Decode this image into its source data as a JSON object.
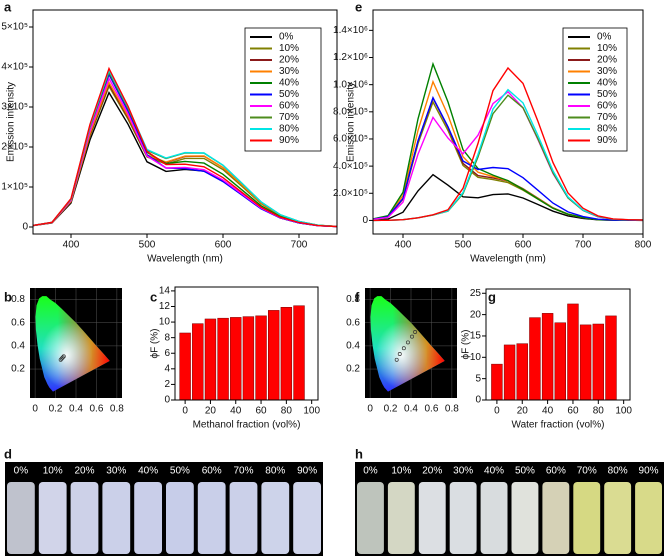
{
  "chart_data": [
    {
      "panel": "a",
      "type": "line",
      "xlabel": "Wavelength (nm)",
      "ylabel": "Emission intensity",
      "x": [
        350,
        375,
        400,
        425,
        450,
        475,
        500,
        525,
        550,
        575,
        600,
        625,
        650,
        675,
        700,
        725,
        750
      ],
      "xlim": [
        350,
        750
      ],
      "xticks": [
        400,
        500,
        600,
        700
      ],
      "ylim": [
        -17500,
        542500
      ],
      "yticks": [
        0,
        {
          "value": 100000,
          "label": "1×10⁵"
        },
        {
          "value": 200000,
          "label": "2×10⁵"
        },
        {
          "value": 300000,
          "label": "3×10⁵"
        },
        {
          "value": 400000,
          "label": "4×10⁵"
        },
        {
          "value": 500000,
          "label": "5×10⁵"
        }
      ],
      "legend": "upper right",
      "series": [
        {
          "name": "0%",
          "color": "#000000",
          "values": [
            3400,
            10000,
            60000,
            218000,
            336000,
            257000,
            163000,
            139000,
            144000,
            140000,
            116000,
            82000,
            47000,
            23000,
            10000,
            3300,
            1100
          ]
        },
        {
          "name": "10%",
          "color": "#808000",
          "values": [
            3500,
            10500,
            63000,
            227500,
            351400,
            269500,
            175000,
            157500,
            171500,
            171500,
            143500,
            101500,
            58500,
            28700,
            13000,
            4200,
            1400
          ]
        },
        {
          "name": "20%",
          "color": "#8b1a1a",
          "values": [
            3550,
            10650,
            63900,
            230750,
            356450,
            273500,
            178100,
            161300,
            176500,
            177000,
            148300,
            104900,
            60400,
            29700,
            13400,
            4350,
            1450
          ]
        },
        {
          "name": "30%",
          "color": "#ff8000",
          "values": [
            3600,
            10800,
            64800,
            234000,
            361450,
            277300,
            180200,
            162500,
            177300,
            177400,
            148500,
            105100,
            60500,
            29700,
            13400,
            4350,
            1450
          ]
        },
        {
          "name": "40%",
          "color": "#008000",
          "values": [
            3850,
            11550,
            69300,
            250250,
            386250,
            295000,
            186700,
            158800,
            164000,
            159700,
            131800,
            92800,
            53300,
            26400,
            11900,
            3750,
            1250
          ]
        },
        {
          "name": "50%",
          "color": "#0000ff",
          "values": [
            3800,
            11400,
            68400,
            247000,
            381050,
            290300,
            180600,
            147500,
            146300,
            139200,
            113500,
            79700,
            45600,
            22700,
            10300,
            3150,
            1050
          ]
        },
        {
          "name": "60%",
          "color": "#ff00ff",
          "values": [
            3700,
            11100,
            66600,
            240500,
            371100,
            283000,
            177400,
            147500,
            149000,
            143300,
            117500,
            82600,
            47400,
            23500,
            10700,
            3300,
            1100
          ]
        },
        {
          "name": "70%",
          "color": "#4d8c1e",
          "values": [
            3850,
            11550,
            69300,
            250250,
            386500,
            296300,
            191700,
            171300,
            185300,
            184700,
            154300,
            109100,
            62800,
            30900,
            13900,
            4500,
            1500
          ]
        },
        {
          "name": "80%",
          "color": "#00e5e5",
          "values": [
            3900,
            11700,
            70200,
            253500,
            391500,
            300000,
            193800,
            172500,
            186000,
            185100,
            154500,
            109200,
            62900,
            30900,
            14000,
            4500,
            1500
          ]
        },
        {
          "name": "90%",
          "color": "#ff0000",
          "values": [
            3950,
            11850,
            71100,
            256750,
            396150,
            302000,
            188900,
            156300,
            157000,
            150600,
            123300,
            86600,
            49600,
            24700,
            11200,
            3450,
            1150
          ]
        }
      ]
    },
    {
      "panel": "b",
      "type": "cie",
      "xlim": [
        -0.05,
        0.85
      ],
      "ylim": [
        -0.05,
        0.9
      ],
      "xticks": [
        0,
        0.2,
        0.4,
        0.6,
        0.8
      ],
      "yticks": [
        0.2,
        0.4,
        0.6,
        0.8
      ],
      "x": [
        0.25,
        0.26,
        0.27,
        0.28
      ],
      "y": [
        0.28,
        0.29,
        0.3,
        0.31
      ]
    },
    {
      "panel": "c",
      "type": "bar",
      "xlabel": "Methanol fraction (vol%)",
      "ylabel": "ϕF (%)",
      "color": "#ff0000",
      "x": [
        0,
        10,
        20,
        30,
        40,
        50,
        60,
        70,
        80,
        90
      ],
      "values": [
        8.6,
        9.8,
        10.4,
        10.5,
        10.6,
        10.7,
        10.8,
        11.5,
        11.9,
        12.1
      ],
      "xlim": [
        -8,
        105
      ],
      "xticks": [
        0,
        20,
        40,
        60,
        80,
        100
      ],
      "ylim": [
        0,
        14.5
      ],
      "yticks": [
        0,
        2,
        4,
        6,
        8,
        10,
        12,
        14
      ]
    },
    {
      "panel": "e",
      "type": "line",
      "xlabel": "Wavelength (nm)",
      "ylabel": "Emission intensity",
      "x": [
        350,
        375,
        400,
        425,
        450,
        475,
        500,
        525,
        550,
        575,
        600,
        625,
        650,
        675,
        700,
        725,
        750,
        775,
        800
      ],
      "xlim": [
        350,
        800
      ],
      "xticks": [
        400,
        500,
        600,
        700,
        800
      ],
      "ylim": [
        -100000,
        1550000
      ],
      "yticks": [
        0,
        {
          "value": 200000,
          "label": "2.0×10⁵"
        },
        {
          "value": 400000,
          "label": "4.0×10⁵"
        },
        {
          "value": 600000,
          "label": "6.0×10⁵"
        },
        {
          "value": 800000,
          "label": "8.0×10⁵"
        },
        {
          "value": 1000000,
          "label": "1.0×10⁶"
        },
        {
          "value": 1200000,
          "label": "1.2×10⁶"
        },
        {
          "value": 1400000,
          "label": "1.4×10⁶"
        }
      ],
      "legend": "upper right",
      "series": [
        {
          "name": "0%",
          "color": "#000000",
          "values": [
            3350,
            10050,
            60300,
            217750,
            336700,
            259500,
            173700,
            166300,
            190500,
            195200,
            165300,
            117300,
            67700,
            33100,
            14900,
            4950,
            1650,
            800,
            500
          ]
        },
        {
          "name": "10%",
          "color": "#808000",
          "values": [
            8700,
            26100,
            156600,
            565500,
            872000,
            662500,
            405400,
            317500,
            300500,
            278300,
            223500,
            156100,
            89100,
            44700,
            20400,
            6000,
            2000,
            1000,
            600
          ]
        },
        {
          "name": "20%",
          "color": "#8b1a1a",
          "values": [
            9000,
            27000,
            162000,
            585000,
            902100,
            685500,
            420000,
            330000,
            313500,
            291000,
            234000,
            163500,
            93300,
            46800,
            21300,
            6300,
            2100,
            1100,
            600
          ]
        },
        {
          "name": "30%",
          "color": "#ff8000",
          "values": [
            10200,
            30600,
            183600,
            663000,
            1022000,
            775000,
            468400,
            355000,
            323000,
            291800,
            231000,
            160600,
            91300,
            46200,
            21100,
            6000,
            2000,
            1000,
            600
          ]
        },
        {
          "name": "40%",
          "color": "#008000",
          "values": [
            11500,
            34500,
            207000,
            747500,
            1151900,
            872000,
            521000,
            382500,
            334000,
            293500,
            228500,
            158000,
            89500,
            45700,
            21000,
            5700,
            1900,
            950,
            570
          ]
        },
        {
          "name": "50%",
          "color": "#0000ff",
          "values": [
            9000,
            27000,
            162000,
            585000,
            903000,
            690000,
            438000,
            375000,
            390000,
            381000,
            315000,
            222000,
            127500,
            63000,
            28500,
            9000,
            3000,
            1500,
            900
          ]
        },
        {
          "name": "60%",
          "color": "#ff00ff",
          "values": [
            7500,
            22500,
            135000,
            487500,
            758800,
            606500,
            491000,
            627500,
            860500,
            947500,
            829500,
            594500,
            345700,
            165900,
            74200,
            26400,
            8800,
            4400,
            2600
          ]
        },
        {
          "name": "70%",
          "color": "#4d8c1e",
          "values": [
            300,
            900,
            5400,
            19500,
            39200,
            68500,
            196600,
            467500,
            786500,
            922700,
            829500,
            598900,
            350100,
            165900,
            73800,
            27600,
            9200,
            4600,
            2800
          ]
        },
        {
          "name": "80%",
          "color": "#00e5e5",
          "values": [
            300,
            900,
            5400,
            19500,
            39600,
            70500,
            204600,
            487500,
            820500,
            962700,
            865500,
            624900,
            365300,
            173100,
            77000,
            28800,
            9600,
            4800,
            2900
          ]
        },
        {
          "name": "90%",
          "color": "#ff0000",
          "values": [
            300,
            900,
            5400,
            19500,
            41200,
            78500,
            236600,
            567500,
            956500,
            1122700,
            1009500,
            728900,
            426100,
            201900,
            89800,
            33600,
            11200,
            5600,
            3400
          ]
        }
      ]
    },
    {
      "panel": "f",
      "type": "cie",
      "xlim": [
        -0.05,
        0.85
      ],
      "ylim": [
        -0.05,
        0.9
      ],
      "xticks": [
        0,
        0.2,
        0.4,
        0.6,
        0.8
      ],
      "yticks": [
        0.2,
        0.4,
        0.6,
        0.8
      ],
      "x": [
        0.26,
        0.29,
        0.33,
        0.37,
        0.41,
        0.44
      ],
      "y": [
        0.28,
        0.33,
        0.38,
        0.43,
        0.48,
        0.52
      ]
    },
    {
      "panel": "g",
      "type": "bar",
      "xlabel": "Water fraction (vol%)",
      "ylabel": "ϕF (%)",
      "color": "#ff0000",
      "x": [
        0,
        10,
        20,
        30,
        40,
        50,
        60,
        70,
        80,
        90
      ],
      "values": [
        8.4,
        12.9,
        13.2,
        19.3,
        20.3,
        18.1,
        22.5,
        17.6,
        17.8,
        19.7
      ],
      "xlim": [
        -8.6,
        105
      ],
      "xticks": [
        0,
        20,
        40,
        60,
        80,
        100
      ],
      "ylim": [
        0,
        26
      ],
      "yticks": [
        0,
        5,
        10,
        15,
        20,
        25
      ]
    }
  ],
  "photos": [
    {
      "panel": "d",
      "labels": [
        "0%",
        "10%",
        "20%",
        "30%",
        "40%",
        "50%",
        "60%",
        "70%",
        "80%",
        "90%"
      ],
      "colors": [
        "#c9ccd8",
        "#dcdff5",
        "#d8dcf4",
        "#d6dbf5",
        "#d4d9f5",
        "#d2d8f5",
        "#d4daf5",
        "#d6dbf6",
        "#d8def7",
        "#dbe0f8"
      ]
    },
    {
      "panel": "h",
      "labels": [
        "0%",
        "10%",
        "20%",
        "30%",
        "40%",
        "50%",
        "60%",
        "70%",
        "80%",
        "90%"
      ],
      "colors": [
        "#c8cfc6",
        "#dfe3cf",
        "#e8ebef",
        "#e6eaee",
        "#e4e8ea",
        "#eceee8",
        "#e0dcc0",
        "#e2e58a",
        "#e6e89a",
        "#e4e690"
      ]
    }
  ]
}
